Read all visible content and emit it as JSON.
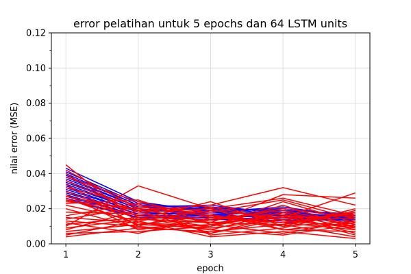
{
  "chart_data": {
    "type": "line",
    "title": "error pelatihan untuk 5 epochs dan 64 LSTM units",
    "xlabel": "epoch",
    "ylabel": "nilai error (MSE)",
    "x": [
      1,
      2,
      3,
      4,
      5
    ],
    "x_ticks": [
      "1",
      "2",
      "3",
      "4",
      "5"
    ],
    "xlim": [
      0.8,
      5.2
    ],
    "ylim": [
      0,
      0.12
    ],
    "y_ticks": [
      "0.00",
      "0.02",
      "0.04",
      "0.06",
      "0.08",
      "0.10",
      "0.12"
    ],
    "grid": true,
    "colors": {
      "blue": "#0000ff",
      "red": "#ff0000",
      "grid": "#d9d9d9"
    },
    "series": [
      {
        "color": "blue",
        "values": [
          0.043,
          0.024,
          0.018,
          0.021,
          0.015
        ]
      },
      {
        "color": "blue",
        "values": [
          0.041,
          0.023,
          0.019,
          0.02,
          0.016
        ]
      },
      {
        "color": "blue",
        "values": [
          0.04,
          0.022,
          0.02,
          0.019,
          0.017
        ]
      },
      {
        "color": "blue",
        "values": [
          0.039,
          0.022,
          0.021,
          0.018,
          0.015
        ]
      },
      {
        "color": "blue",
        "values": [
          0.038,
          0.021,
          0.022,
          0.017,
          0.014
        ]
      },
      {
        "color": "blue",
        "values": [
          0.037,
          0.021,
          0.019,
          0.016,
          0.016
        ]
      },
      {
        "color": "blue",
        "values": [
          0.036,
          0.02,
          0.017,
          0.018,
          0.013
        ]
      },
      {
        "color": "blue",
        "values": [
          0.035,
          0.02,
          0.016,
          0.019,
          0.014
        ]
      },
      {
        "color": "blue",
        "values": [
          0.034,
          0.019,
          0.018,
          0.02,
          0.015
        ]
      },
      {
        "color": "blue",
        "values": [
          0.033,
          0.019,
          0.02,
          0.017,
          0.016
        ]
      },
      {
        "color": "blue",
        "values": [
          0.032,
          0.018,
          0.021,
          0.016,
          0.014
        ]
      },
      {
        "color": "blue",
        "values": [
          0.031,
          0.018,
          0.016,
          0.015,
          0.013
        ]
      },
      {
        "color": "blue",
        "values": [
          0.03,
          0.017,
          0.017,
          0.014,
          0.015
        ]
      },
      {
        "color": "blue",
        "values": [
          0.029,
          0.017,
          0.018,
          0.016,
          0.014
        ]
      },
      {
        "color": "blue",
        "values": [
          0.028,
          0.016,
          0.015,
          0.013,
          0.016
        ]
      },
      {
        "color": "blue",
        "values": [
          0.027,
          0.016,
          0.016,
          0.012,
          0.015
        ]
      },
      {
        "color": "blue",
        "values": [
          0.026,
          0.015,
          0.015,
          0.014,
          0.016
        ]
      },
      {
        "color": "blue",
        "values": [
          0.025,
          0.015,
          0.014,
          0.013,
          0.014
        ]
      },
      {
        "color": "red",
        "values": [
          0.045,
          0.012,
          0.008,
          0.018,
          0.01
        ]
      },
      {
        "color": "red",
        "values": [
          0.042,
          0.02,
          0.012,
          0.015,
          0.016
        ]
      },
      {
        "color": "red",
        "values": [
          0.04,
          0.015,
          0.01,
          0.022,
          0.009
        ]
      },
      {
        "color": "red",
        "values": [
          0.038,
          0.024,
          0.015,
          0.012,
          0.018
        ]
      },
      {
        "color": "red",
        "values": [
          0.036,
          0.018,
          0.02,
          0.008,
          0.012
        ]
      },
      {
        "color": "red",
        "values": [
          0.034,
          0.01,
          0.006,
          0.016,
          0.005
        ]
      },
      {
        "color": "red",
        "values": [
          0.032,
          0.022,
          0.018,
          0.025,
          0.014
        ]
      },
      {
        "color": "red",
        "values": [
          0.03,
          0.014,
          0.024,
          0.01,
          0.02
        ]
      },
      {
        "color": "red",
        "values": [
          0.028,
          0.008,
          0.014,
          0.019,
          0.011
        ]
      },
      {
        "color": "red",
        "values": [
          0.027,
          0.019,
          0.022,
          0.032,
          0.022
        ]
      },
      {
        "color": "red",
        "values": [
          0.026,
          0.011,
          0.009,
          0.014,
          0.017
        ]
      },
      {
        "color": "red",
        "values": [
          0.025,
          0.016,
          0.012,
          0.028,
          0.026
        ]
      },
      {
        "color": "red",
        "values": [
          0.024,
          0.02,
          0.016,
          0.012,
          0.008
        ]
      },
      {
        "color": "red",
        "values": [
          0.023,
          0.025,
          0.011,
          0.006,
          0.013
        ]
      },
      {
        "color": "red",
        "values": [
          0.022,
          0.013,
          0.019,
          0.015,
          0.029
        ]
      },
      {
        "color": "red",
        "values": [
          0.02,
          0.009,
          0.007,
          0.011,
          0.004
        ]
      },
      {
        "color": "red",
        "values": [
          0.018,
          0.017,
          0.013,
          0.02,
          0.015
        ]
      },
      {
        "color": "red",
        "values": [
          0.016,
          0.023,
          0.005,
          0.009,
          0.019
        ]
      },
      {
        "color": "red",
        "values": [
          0.015,
          0.012,
          0.01,
          0.024,
          0.012
        ]
      },
      {
        "color": "red",
        "values": [
          0.014,
          0.021,
          0.017,
          0.008,
          0.007
        ]
      },
      {
        "color": "red",
        "values": [
          0.013,
          0.01,
          0.021,
          0.013,
          0.01
        ]
      },
      {
        "color": "red",
        "values": [
          0.012,
          0.006,
          0.015,
          0.017,
          0.006
        ]
      },
      {
        "color": "red",
        "values": [
          0.011,
          0.015,
          0.008,
          0.005,
          0.011
        ]
      },
      {
        "color": "red",
        "values": [
          0.01,
          0.033,
          0.02,
          0.026,
          0.016
        ]
      },
      {
        "color": "red",
        "values": [
          0.009,
          0.014,
          0.012,
          0.011,
          0.018
        ]
      },
      {
        "color": "red",
        "values": [
          0.008,
          0.019,
          0.006,
          0.014,
          0.009
        ]
      },
      {
        "color": "red",
        "values": [
          0.007,
          0.011,
          0.016,
          0.01,
          0.013
        ]
      },
      {
        "color": "red",
        "values": [
          0.006,
          0.007,
          0.01,
          0.018,
          0.008
        ]
      },
      {
        "color": "red",
        "values": [
          0.005,
          0.013,
          0.004,
          0.007,
          0.003
        ]
      },
      {
        "color": "red",
        "values": [
          0.004,
          0.009,
          0.011,
          0.016,
          0.014
        ]
      }
    ]
  }
}
